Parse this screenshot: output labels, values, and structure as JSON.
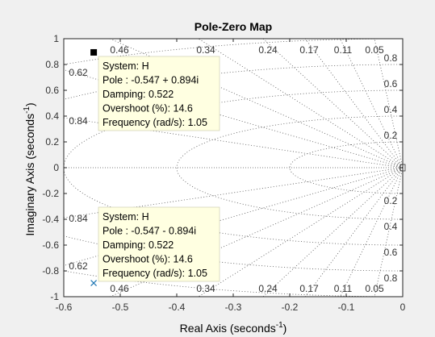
{
  "chart_data": {
    "type": "scatter",
    "title": "Pole-Zero Map",
    "xlabel": "Real Axis (seconds",
    "xlabel_sup": "-1",
    "ylabel": "Imaginary Axis (seconds",
    "ylabel_sup": "-1",
    "xlim": [
      -0.6,
      0
    ],
    "ylim": [
      -1,
      1
    ],
    "x_ticks": [
      "-0.6",
      "-0.5",
      "-0.4",
      "-0.3",
      "-0.2",
      "-0.1",
      "0"
    ],
    "y_ticks": [
      "1",
      "0.8",
      "0.6",
      "0.4",
      "0.2",
      "0",
      "-0.2",
      "-0.4",
      "-0.6",
      "-0.8",
      "-1"
    ],
    "grid": true,
    "damping_grid_labels": [
      "0.46",
      "0.34",
      "0.24",
      "0.17",
      "0.11",
      "0.05",
      "0.62",
      "0.84"
    ],
    "frequency_grid_labels": [
      "1",
      "0.8",
      "0.6",
      "0.4",
      "0.2",
      "0.2",
      "0.4",
      "0.6",
      "0.8",
      "1"
    ],
    "poles": [
      {
        "real": -0.547,
        "imag": 0.894,
        "marker": "square",
        "selected": true,
        "color": "#000000"
      },
      {
        "real": -0.547,
        "imag": -0.894,
        "marker": "x",
        "selected": false,
        "color": "#1f77b4"
      }
    ],
    "datatips": [
      {
        "lines": [
          "System: H",
          "Pole : -0.547 + 0.894i",
          "Damping: 0.522",
          "Overshoot (%): 14.6",
          "Frequency (rad/s): 1.05"
        ]
      },
      {
        "lines": [
          "System: H",
          "Pole : -0.547 - 0.894i",
          "Damping: 0.522",
          "Overshoot (%): 14.6",
          "Frequency (rad/s): 1.05"
        ]
      }
    ]
  },
  "colors": {
    "background": "#f0f0f0",
    "axes": "#ffffff",
    "grid": "#555555",
    "datatip_fill": "#ffffe1",
    "pole_marker": "#1f77b4"
  }
}
